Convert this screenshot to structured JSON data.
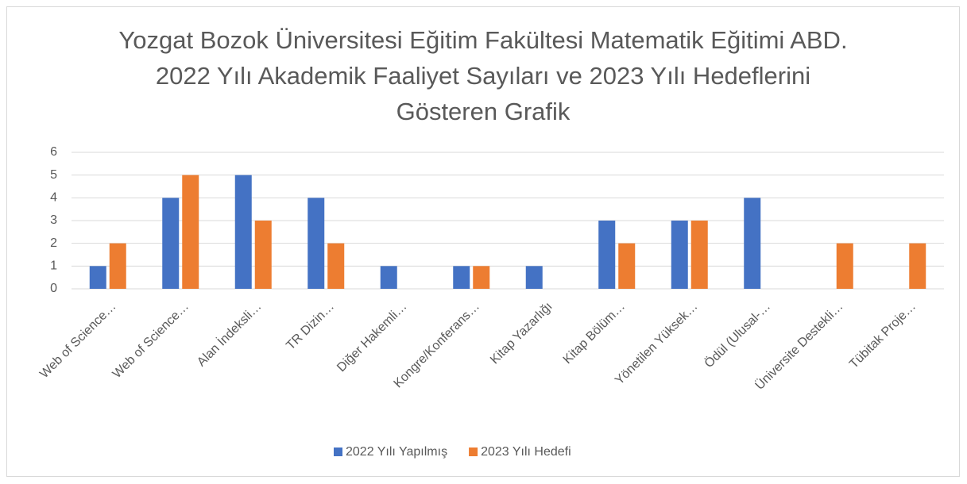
{
  "chart_data": {
    "type": "bar",
    "title": "Yozgat Bozok Üniversitesi Eğitim Fakültesi Matematik Eğitimi ABD. 2022 Yılı Akademik Faaliyet Sayıları ve 2023 Yılı Hedeflerini Gösteren Grafik",
    "categories": [
      "Web of Science…",
      "Web of Science…",
      "Alan İndeksli…",
      "TR Dizin…",
      "Diğer Hakemli…",
      "Kongre/Konferans…",
      "Kitap Yazarlığı",
      "Kitap Bölüm…",
      "Yönetilen Yüksek…",
      "Ödül (Ulusal-…",
      "Üniversite Destekli…",
      "Tübitak Proje…"
    ],
    "series": [
      {
        "name": "2022 Yılı Yapılmış",
        "color": "#4472c4",
        "values": [
          1,
          4,
          5,
          4,
          1,
          1,
          1,
          3,
          3,
          4,
          0,
          0
        ]
      },
      {
        "name": "2023 Yılı Hedefi",
        "color": "#ed7d31",
        "values": [
          2,
          5,
          3,
          2,
          0,
          1,
          0,
          2,
          3,
          0,
          2,
          2
        ]
      }
    ],
    "ylim": [
      0,
      6
    ],
    "yticks": [
      0,
      1,
      2,
      3,
      4,
      5,
      6
    ],
    "grid": true,
    "legend": "bottom"
  }
}
